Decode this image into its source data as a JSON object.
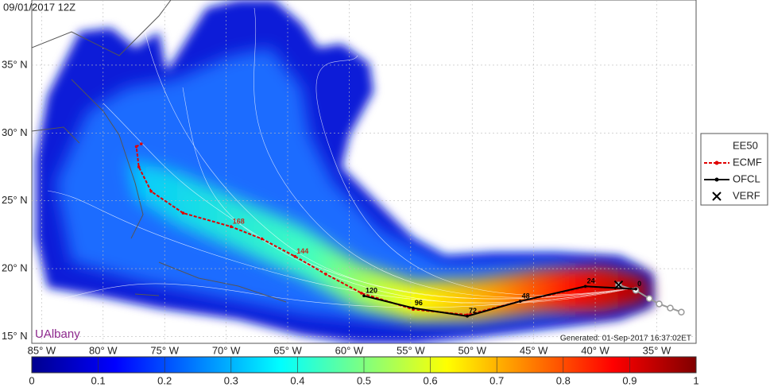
{
  "map": {
    "title": "09/01/2017 12Z",
    "credit": "UAlbany",
    "generated": "Generated: 01-Sep-2017 16:37:02ET",
    "lon_range": [
      -85.8,
      -31.8
    ],
    "lat_range": [
      14.5,
      39.8
    ],
    "lon_ticks": [
      {
        "value": -85,
        "label": "85° W"
      },
      {
        "value": -80,
        "label": "80° W"
      },
      {
        "value": -75,
        "label": "75° W"
      },
      {
        "value": -70,
        "label": "70° W"
      },
      {
        "value": -65,
        "label": "65° W"
      },
      {
        "value": -60,
        "label": "60° W"
      },
      {
        "value": -55,
        "label": "55° W"
      },
      {
        "value": -50,
        "label": "50° W"
      },
      {
        "value": -45,
        "label": "45° W"
      },
      {
        "value": -40,
        "label": "40° W"
      },
      {
        "value": -35,
        "label": "35° W"
      }
    ],
    "lat_ticks": [
      {
        "value": 35,
        "label": "35° N"
      },
      {
        "value": 30,
        "label": "30° N"
      },
      {
        "value": 25,
        "label": "25° N"
      },
      {
        "value": 20,
        "label": "20° N"
      },
      {
        "value": 15,
        "label": "15° N"
      }
    ]
  },
  "legend": [
    "EE50",
    "ECMF",
    "OFCL",
    "VERF"
  ],
  "ecmf": {
    "color": "#e00000",
    "points": [
      {
        "lon": -36.7,
        "lat": 18.5
      },
      {
        "lon": -40.8,
        "lat": 18.6
      },
      {
        "lon": -46.1,
        "lat": 17.6
      },
      {
        "lon": -50.4,
        "lat": 16.6
      },
      {
        "lon": -54.8,
        "lat": 17.0
      },
      {
        "lon": -59.0,
        "lat": 18.2
      },
      {
        "lon": -61.9,
        "lat": 19.6
      },
      {
        "lon": -64.4,
        "lat": 20.9,
        "label": "144"
      },
      {
        "lon": -67.1,
        "lat": 22.2
      },
      {
        "lon": -69.6,
        "lat": 23.1,
        "label": "168"
      },
      {
        "lon": -73.5,
        "lat": 24.1
      },
      {
        "lon": -76.1,
        "lat": 25.7
      },
      {
        "lon": -77.1,
        "lat": 27.5
      },
      {
        "lon": -77.3,
        "lat": 29.0
      },
      {
        "lon": -76.9,
        "lat": 29.2
      }
    ]
  },
  "ofcl": {
    "color": "#000000",
    "points": [
      {
        "lon": -36.7,
        "lat": 18.5,
        "label": "0"
      },
      {
        "lon": -40.8,
        "lat": 18.7,
        "label": "24"
      },
      {
        "lon": -46.1,
        "lat": 17.6,
        "label": "48"
      },
      {
        "lon": -50.4,
        "lat": 16.5,
        "label": "72"
      },
      {
        "lon": -54.8,
        "lat": 17.1,
        "label": "96"
      },
      {
        "lon": -58.8,
        "lat": 18.0,
        "label": "120"
      }
    ]
  },
  "verf": {
    "lon": -38.1,
    "lat": 18.8
  },
  "best_track": {
    "color": "#999999",
    "lon": [
      -38.1,
      -36.7,
      -35.6,
      -34.8,
      -33.9,
      -33.0
    ],
    "lat": [
      18.8,
      18.4,
      17.8,
      17.4,
      17.1,
      16.8
    ]
  },
  "colorbar": {
    "lim": [
      0,
      1
    ],
    "ticks": [
      0,
      0.1,
      0.2,
      0.3,
      0.4,
      0.5,
      0.6,
      0.7,
      0.8,
      0.9,
      1
    ]
  }
}
